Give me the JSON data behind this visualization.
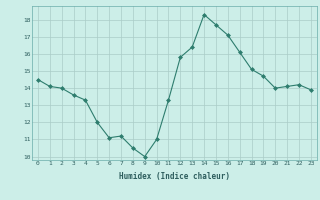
{
  "x": [
    0,
    1,
    2,
    3,
    4,
    5,
    6,
    7,
    8,
    9,
    10,
    11,
    12,
    13,
    14,
    15,
    16,
    17,
    18,
    19,
    20,
    21,
    22,
    23
  ],
  "y": [
    14.5,
    14.1,
    14.0,
    13.6,
    13.3,
    12.0,
    11.1,
    11.2,
    10.5,
    10.0,
    11.0,
    13.3,
    15.8,
    16.4,
    18.3,
    17.7,
    17.1,
    16.1,
    15.1,
    14.7,
    14.0,
    14.1,
    14.2,
    13.9
  ],
  "xlabel": "Humidex (Indice chaleur)",
  "ylim": [
    9.8,
    18.8
  ],
  "xlim": [
    -0.5,
    23.5
  ],
  "yticks": [
    10,
    11,
    12,
    13,
    14,
    15,
    16,
    17,
    18
  ],
  "xticks": [
    0,
    1,
    2,
    3,
    4,
    5,
    6,
    7,
    8,
    9,
    10,
    11,
    12,
    13,
    14,
    15,
    16,
    17,
    18,
    19,
    20,
    21,
    22,
    23
  ],
  "line_color": "#2e7d6e",
  "marker": "D",
  "marker_size": 2.0,
  "bg_color": "#cceee8",
  "grid_color": "#aaccc8",
  "font": "monospace"
}
